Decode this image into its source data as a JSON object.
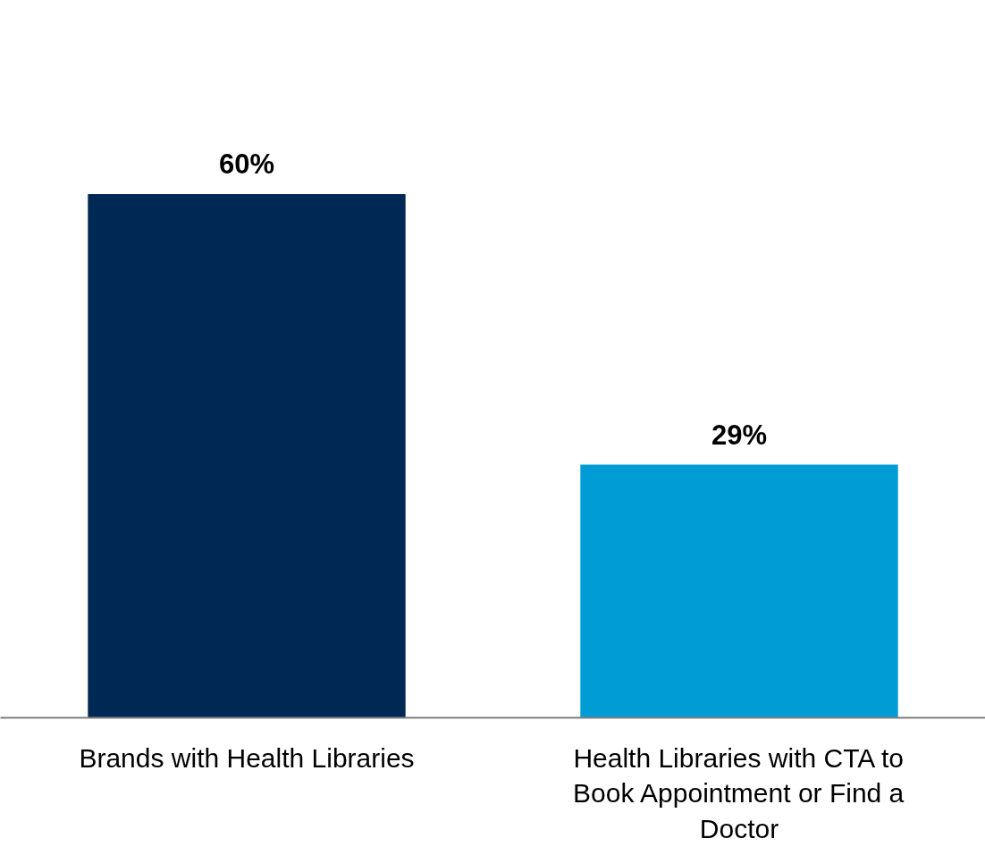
{
  "chart_data": {
    "type": "bar",
    "categories": [
      "Brands with Health Libraries",
      "Health Libraries with CTA to Book Appointment or Find a Doctor"
    ],
    "values": [
      60,
      29
    ],
    "colors": [
      "#002855",
      "#009cd6"
    ],
    "value_labels": [
      "60%",
      "29%"
    ],
    "grid": false,
    "tick_labels": "x"
  }
}
